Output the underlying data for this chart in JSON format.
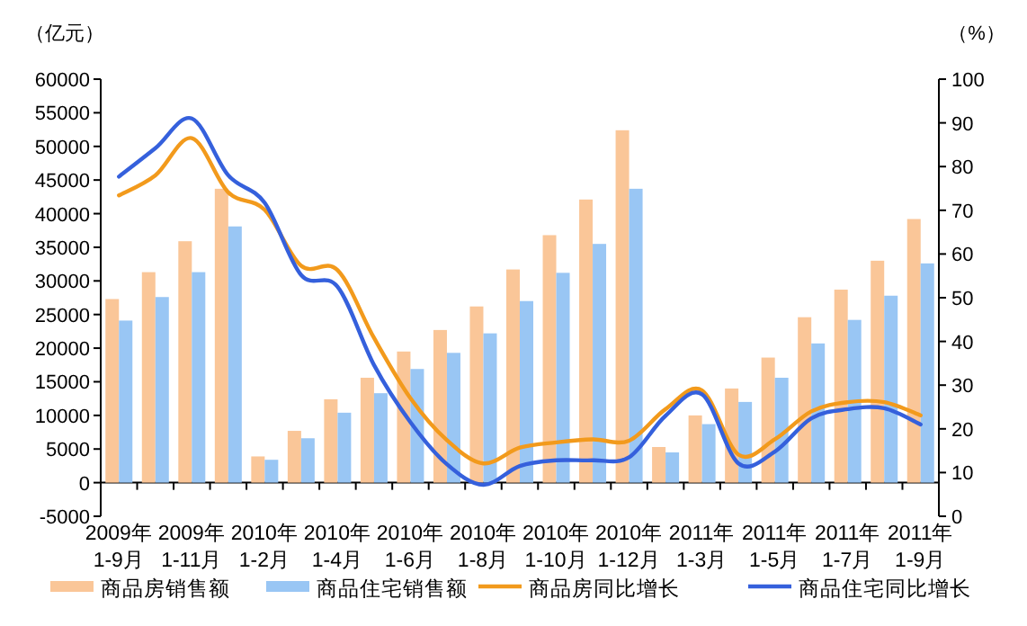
{
  "chart_data": {
    "type": "bar",
    "categories": [
      "2009年\n1-9月",
      null,
      "2009年\n1-11月",
      null,
      "2010年\n1-2月",
      null,
      "2010年\n1-4月",
      null,
      "2010年\n1-6月",
      null,
      "2010年\n1-8月",
      null,
      "2010年\n1-10月",
      null,
      "2010年\n1-12月",
      null,
      "2011年\n1-3月",
      null,
      "2011年\n1-5月",
      null,
      "2011年\n1-7月",
      null,
      "2011年\n1-9月"
    ],
    "ylabel": "（亿元）",
    "y2label": "（%）",
    "ylim": [
      -5000,
      60000
    ],
    "yticks": [
      -5000,
      0,
      5000,
      10000,
      15000,
      20000,
      25000,
      30000,
      35000,
      40000,
      45000,
      50000,
      55000,
      60000
    ],
    "y2lim": [
      0,
      100
    ],
    "y2ticks": [
      0,
      10,
      20,
      30,
      40,
      50,
      60,
      70,
      80,
      90,
      100
    ],
    "legend": "bottom",
    "series": [
      {
        "name": "商品房销售额",
        "color": "#fac698",
        "values": [
          27300,
          31300,
          35900,
          43700,
          3900,
          7700,
          12400,
          15600,
          19500,
          22700,
          26200,
          31700,
          36800,
          42100,
          52400,
          5300,
          10000,
          14000,
          18600,
          24600,
          28700,
          33000,
          39200
        ]
      },
      {
        "name": "商品住宅销售额",
        "color": "#99c6f4",
        "values": [
          24100,
          27600,
          31300,
          38100,
          3400,
          6600,
          10400,
          13300,
          16900,
          19300,
          22200,
          27000,
          31200,
          35500,
          43700,
          4500,
          8700,
          12000,
          15600,
          20700,
          24200,
          27800,
          32600
        ]
      },
      {
        "name": "商品房同比增长",
        "type": "line",
        "axis": "y2",
        "color": "#f29a1c",
        "values": [
          73.4,
          78,
          86.5,
          74.1,
          70.1,
          57.3,
          56.3,
          40.8,
          27,
          17.4,
          12.1,
          15.7,
          16.9,
          17.6,
          17.3,
          24.5,
          28.8,
          14.1,
          17.6,
          24,
          26.1,
          26.1,
          23.1
        ]
      },
      {
        "name": "商品住宅同比增长",
        "type": "line",
        "axis": "y2",
        "color": "#3560dc",
        "values": [
          77.7,
          84.2,
          91,
          78,
          71.7,
          55.2,
          52.5,
          34.6,
          21.5,
          11.9,
          7.2,
          11.5,
          12.8,
          12.8,
          13.5,
          23,
          27.9,
          12.1,
          14.8,
          22.4,
          24.5,
          24.7,
          21
        ]
      }
    ]
  }
}
